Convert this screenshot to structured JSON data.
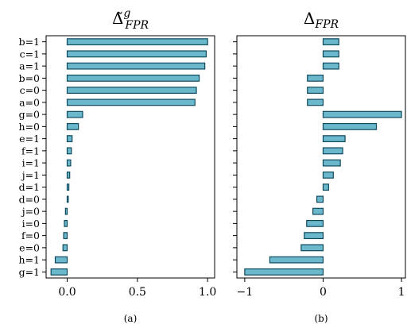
{
  "chart_data": [
    {
      "type": "bar",
      "orientation": "horizontal",
      "caption": "(a)",
      "title": {
        "symbol": "Δ̃",
        "superscript": "g",
        "subscript": "FPR"
      },
      "categories": [
        "b=1",
        "c=1",
        "a=1",
        "b=0",
        "c=0",
        "a=0",
        "g=0",
        "h=0",
        "e=1",
        "f=1",
        "i=1",
        "j=1",
        "d=1",
        "d=0",
        "j=0",
        "i=0",
        "f=0",
        "e=0",
        "h=1",
        "g=1"
      ],
      "values": [
        1.0,
        0.99,
        0.98,
        0.94,
        0.92,
        0.91,
        0.11,
        0.08,
        0.035,
        0.03,
        0.025,
        0.018,
        0.012,
        0.008,
        -0.012,
        -0.02,
        -0.025,
        -0.03,
        -0.085,
        -0.115
      ],
      "xlim": [
        -0.15,
        1.05
      ],
      "xticks": [
        0.0,
        0.5,
        1.0
      ],
      "xtick_labels": [
        "0.0",
        "0.5",
        "1.0"
      ],
      "bar_color": "#6bb8cc",
      "edge_color": "#0f4a5c"
    },
    {
      "type": "bar",
      "orientation": "horizontal",
      "caption": "(b)",
      "title": {
        "symbol": "Δ",
        "superscript": "",
        "subscript": "FPR"
      },
      "categories": [
        "b=1",
        "c=1",
        "a=1",
        "b=0",
        "c=0",
        "a=0",
        "g=0",
        "h=0",
        "e=1",
        "f=1",
        "i=1",
        "j=1",
        "d=1",
        "d=0",
        "j=0",
        "i=0",
        "f=0",
        "e=0",
        "h=1",
        "g=1"
      ],
      "values": [
        0.2,
        0.2,
        0.2,
        -0.2,
        -0.2,
        -0.2,
        1.0,
        0.68,
        0.28,
        0.25,
        0.22,
        0.13,
        0.07,
        -0.08,
        -0.13,
        -0.21,
        -0.24,
        -0.28,
        -0.68,
        -1.0
      ],
      "xlim": [
        -1.1,
        1.05
      ],
      "xticks": [
        -1,
        0,
        1
      ],
      "xtick_labels": [
        "−1",
        "0",
        "1"
      ],
      "bar_color": "#6bb8cc",
      "edge_color": "#0f4a5c"
    }
  ]
}
